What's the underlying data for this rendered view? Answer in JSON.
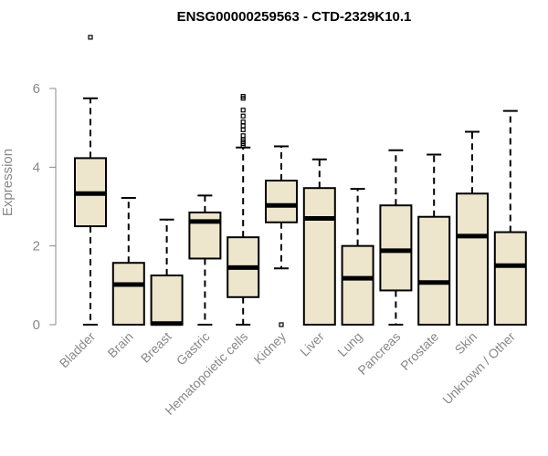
{
  "chart_data": {
    "type": "boxplot",
    "title": "ENSG00000259563 - CTD-2329K10.1",
    "xlabel": "",
    "ylabel": "Expression",
    "ylim": [
      0,
      7.3
    ],
    "yticks": [
      0,
      2,
      4,
      6
    ],
    "grid": false,
    "colors": {
      "box_fill": "#ede6cc",
      "stroke": "#000000",
      "axis": "#888888"
    },
    "categories": [
      "Bladder",
      "Brain",
      "Breast",
      "Gastric",
      "Hematopoietic cells",
      "Kidney",
      "Liver",
      "Lung",
      "Pancreas",
      "Prostate",
      "Skin",
      "Unknown / Other"
    ],
    "boxes": [
      {
        "min": 0,
        "q1": 2.5,
        "median": 3.33,
        "q3": 4.23,
        "max": 5.75,
        "outliers": [
          7.3
        ]
      },
      {
        "min": 0,
        "q1": 0,
        "median": 1.02,
        "q3": 1.57,
        "max": 3.22,
        "outliers": []
      },
      {
        "min": 0,
        "q1": 0,
        "median": 0.03,
        "q3": 1.25,
        "max": 2.67,
        "outliers": []
      },
      {
        "min": 0,
        "q1": 1.68,
        "median": 2.62,
        "q3": 2.85,
        "max": 3.28,
        "outliers": []
      },
      {
        "min": 0,
        "q1": 0.7,
        "median": 1.45,
        "q3": 2.22,
        "max": 4.5,
        "outliers": [
          4.55,
          4.6,
          4.65,
          4.7,
          4.8,
          4.95,
          5.05,
          5.15,
          5.3,
          5.45,
          5.75,
          5.8
        ]
      },
      {
        "min": 1.43,
        "q1": 2.6,
        "median": 3.03,
        "q3": 3.66,
        "max": 4.53,
        "outliers": [
          0
        ]
      },
      {
        "min": 0,
        "q1": 0,
        "median": 2.7,
        "q3": 3.47,
        "max": 4.2,
        "outliers": []
      },
      {
        "min": 0,
        "q1": 0,
        "median": 1.18,
        "q3": 2.0,
        "max": 3.45,
        "outliers": []
      },
      {
        "min": 0,
        "q1": 0.87,
        "median": 1.88,
        "q3": 3.03,
        "max": 4.43,
        "outliers": []
      },
      {
        "min": 0,
        "q1": 0,
        "median": 1.07,
        "q3": 2.74,
        "max": 4.32,
        "outliers": []
      },
      {
        "min": 0,
        "q1": 0,
        "median": 2.25,
        "q3": 3.33,
        "max": 4.9,
        "outliers": []
      },
      {
        "min": 0,
        "q1": 0,
        "median": 1.5,
        "q3": 2.35,
        "max": 5.43,
        "outliers": []
      }
    ]
  }
}
